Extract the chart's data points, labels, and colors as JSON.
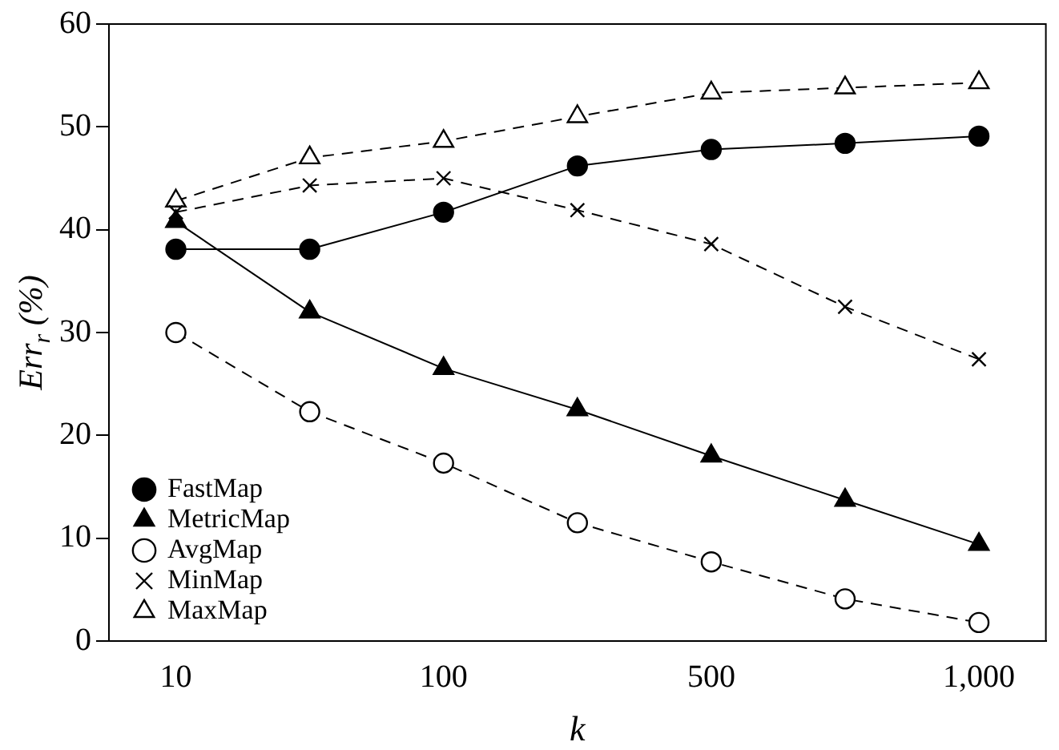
{
  "chart_data": {
    "type": "line",
    "xlabel": "k",
    "ylabel": "Err$_{r}$ (%)",
    "categories": [
      "10",
      null,
      "100",
      null,
      "500",
      null,
      "1,000"
    ],
    "ylim": [
      0,
      60
    ],
    "yticks": [
      0,
      10,
      20,
      30,
      40,
      50,
      60
    ],
    "grid": false,
    "legend": "bottom left",
    "series": [
      {
        "name": "FastMap",
        "color": "#000000",
        "marker": "circle",
        "line_style": "solid",
        "values": [
          38.1,
          38.1,
          41.7,
          46.2,
          47.8,
          48.4,
          49.1
        ]
      },
      {
        "name": "MetricMap",
        "color": "#000000",
        "marker": "triangle",
        "line_style": "solid",
        "values": [
          40.8,
          32,
          26.5,
          22.5,
          18,
          13.7,
          9.4
        ]
      },
      {
        "name": "AvgMap",
        "color": "#000000",
        "marker": "circle",
        "line_style": "dashed",
        "values": [
          30,
          22.3,
          17.3,
          11.5,
          7.7,
          4.1,
          1.8
        ]
      },
      {
        "name": "MinMap",
        "color": "#000000",
        "marker": "cross",
        "line_style": "dashed",
        "values": [
          41.7,
          44.3,
          45,
          41.9,
          38.6,
          32.5,
          27.4
        ]
      },
      {
        "name": "MaxMap",
        "color": "#000000",
        "marker": "triangle",
        "line_style": "dashed",
        "values": [
          42.8,
          47,
          48.6,
          51,
          53.3,
          53.8,
          54.3
        ]
      }
    ]
  }
}
